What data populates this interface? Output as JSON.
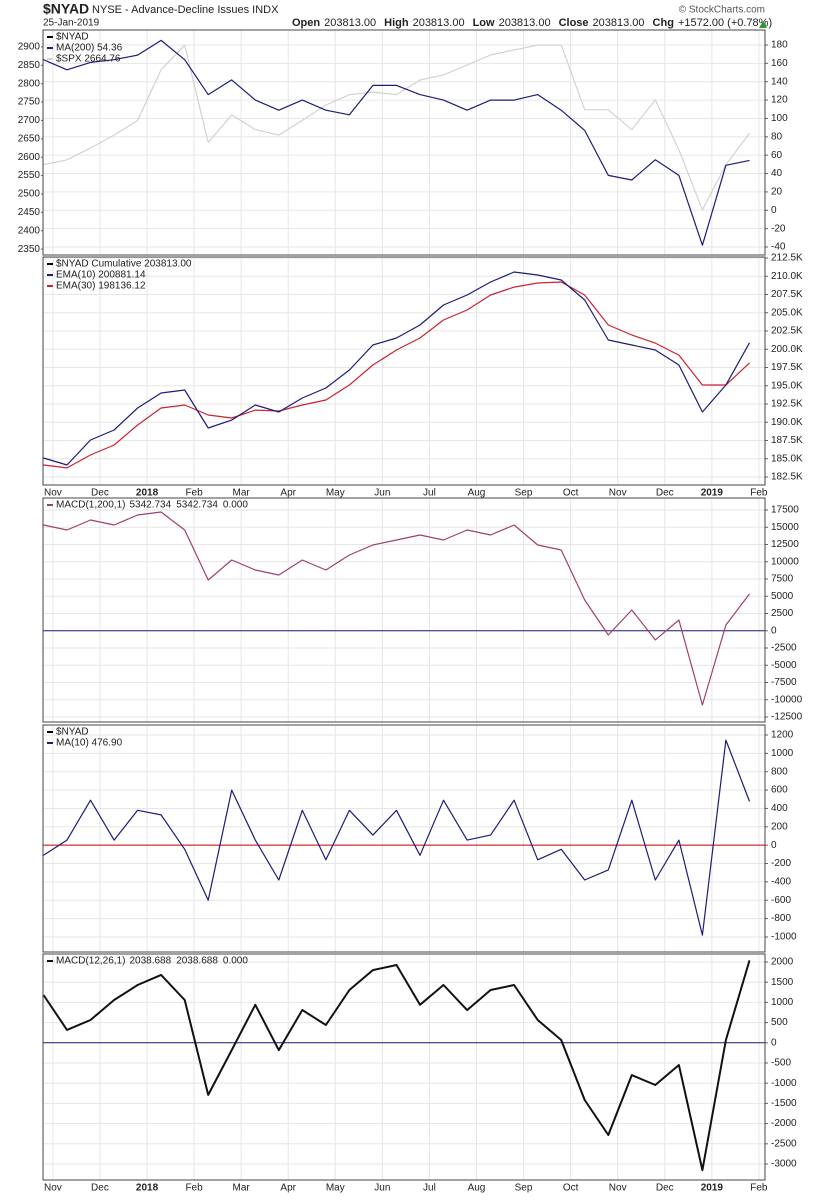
{
  "header": {
    "symbol": "$NYAD",
    "description": "NYSE - Advance-Decline Issues INDX",
    "date": "25-Jan-2019",
    "quote": [
      {
        "label": "Open",
        "value": "203813.00"
      },
      {
        "label": "High",
        "value": "203813.00"
      },
      {
        "label": "Low",
        "value": "203813.00"
      },
      {
        "label": "Close",
        "value": "203813.00"
      },
      {
        "label": "Chg",
        "value": "+1572.00 (+0.78%)"
      }
    ],
    "source": "© StockCharts.com"
  },
  "chart_data": [
    {
      "type": "line",
      "legend_title": "$NYAD",
      "grid": true,
      "x": [
        -0.2,
        0.3,
        0.8,
        1.3,
        1.8,
        2.3,
        2.8,
        3.3,
        3.8,
        4.3,
        4.8,
        5.3,
        5.8,
        6.3,
        6.8,
        7.3,
        7.8,
        8.3,
        8.8,
        9.3,
        9.8,
        10.3,
        10.8,
        11.3,
        11.8,
        12.3,
        12.8,
        13.3,
        13.8,
        14.3,
        14.8
      ],
      "xlim": [
        -0.21,
        15.13
      ],
      "ylim": [
        2334,
        2946
      ],
      "yticks": [
        2350,
        2400,
        2450,
        2500,
        2550,
        2600,
        2650,
        2700,
        2750,
        2800,
        2850,
        2900
      ],
      "yaxis_side": "left",
      "y2lim": [
        -48.7,
        196.3
      ],
      "y2ticks": [
        -40,
        -20,
        0,
        20,
        40,
        60,
        80,
        100,
        120,
        140,
        160,
        180
      ],
      "series": [
        {
          "name": "MA(200) 54.36",
          "color": "#1c1c7a",
          "axis": "y2",
          "values": [
            164,
            153,
            161,
            164,
            169,
            185,
            164,
            126,
            142,
            120,
            109,
            120,
            109,
            104,
            136,
            136,
            126,
            120,
            109,
            120,
            120,
            126,
            109,
            87,
            38,
            33,
            55,
            38,
            -38,
            49,
            54.36
          ]
        },
        {
          "name": "$SPX 2664.76",
          "color": "#d2d2d2",
          "legend_color": "#333333",
          "values": [
            2580,
            2593,
            2625,
            2660,
            2700,
            2838,
            2905,
            2640,
            2715,
            2675,
            2660,
            2700,
            2742,
            2770,
            2777,
            2770,
            2810,
            2824,
            2851,
            2878,
            2892,
            2905,
            2905,
            2729,
            2729,
            2675,
            2756,
            2620,
            2457,
            2580,
            2664.76
          ]
        }
      ]
    },
    {
      "type": "line",
      "legend_title": "$NYAD Cumulative 203813.00",
      "grid": true,
      "x": [
        -0.2,
        0.3,
        0.8,
        1.3,
        1.8,
        2.3,
        2.8,
        3.3,
        3.8,
        4.3,
        4.8,
        5.3,
        5.8,
        6.3,
        6.8,
        7.3,
        7.8,
        8.3,
        8.8,
        9.3,
        9.8,
        10.3,
        10.8,
        11.3,
        11.8,
        12.3,
        12.8,
        13.3,
        13.8,
        14.3,
        14.8
      ],
      "xlim": [
        -0.21,
        15.13
      ],
      "xticks": [
        {
          "value": 0,
          "label": "Nov"
        },
        {
          "value": 1,
          "label": "Dec"
        },
        {
          "value": 2,
          "label": "2018"
        },
        {
          "value": 3,
          "label": "Feb"
        },
        {
          "value": 4,
          "label": "Mar"
        },
        {
          "value": 5,
          "label": "Apr"
        },
        {
          "value": 6,
          "label": "May"
        },
        {
          "value": 7,
          "label": "Jun"
        },
        {
          "value": 8,
          "label": "Jul"
        },
        {
          "value": 9,
          "label": "Aug"
        },
        {
          "value": 10,
          "label": "Sep"
        },
        {
          "value": 11,
          "label": "Oct"
        },
        {
          "value": 12,
          "label": "Nov"
        },
        {
          "value": 13,
          "label": "Dec"
        },
        {
          "value": 14,
          "label": "2019"
        },
        {
          "value": 15,
          "label": "Feb"
        }
      ],
      "ylim": [
        181404,
        212637
      ],
      "yaxis_side": "right",
      "yticks": [
        {
          "value": 182500,
          "label": "182.5K"
        },
        {
          "value": 185000,
          "label": "185.0K"
        },
        {
          "value": 187500,
          "label": "187.5K"
        },
        {
          "value": 190000,
          "label": "190.0K"
        },
        {
          "value": 192500,
          "label": "192.5K"
        },
        {
          "value": 195000,
          "label": "195.0K"
        },
        {
          "value": 197500,
          "label": "197.5K"
        },
        {
          "value": 200000,
          "label": "200.0K"
        },
        {
          "value": 202500,
          "label": "202.5K"
        },
        {
          "value": 205000,
          "label": "205.0K"
        },
        {
          "value": 207500,
          "label": "207.5K"
        },
        {
          "value": 210000,
          "label": "210.0K"
        },
        {
          "value": 212500,
          "label": "212.5K"
        }
      ],
      "series": [
        {
          "name": "EMA(10) 200881.14",
          "color": "#1c1c7a",
          "values": [
            185100,
            184150,
            187570,
            188940,
            191950,
            194000,
            194420,
            189210,
            190300,
            192360,
            191400,
            193320,
            194690,
            197160,
            200580,
            201540,
            203320,
            206060,
            207430,
            209210,
            210580,
            210170,
            209490,
            206750,
            201270,
            200580,
            199900,
            197840,
            191400,
            195100,
            200881
          ]
        },
        {
          "name": "EMA(30) 198136.12",
          "color": "#cc2233",
          "values": [
            184150,
            183740,
            185520,
            186880,
            189620,
            191950,
            192360,
            190990,
            190580,
            191670,
            191540,
            192360,
            193050,
            195100,
            197840,
            199900,
            201540,
            204010,
            205380,
            207430,
            208520,
            209070,
            209210,
            207430,
            203320,
            201950,
            200840,
            199200,
            195100,
            195100,
            198136
          ]
        }
      ]
    },
    {
      "type": "line",
      "grid": true,
      "zero_line_color": "#1c1c7a",
      "x": [
        -0.2,
        0.3,
        0.8,
        1.3,
        1.8,
        2.3,
        2.8,
        3.3,
        3.8,
        4.3,
        4.8,
        5.3,
        5.8,
        6.3,
        6.8,
        7.3,
        7.8,
        8.3,
        8.8,
        9.3,
        9.8,
        10.3,
        10.8,
        11.3,
        11.8,
        12.3,
        12.8,
        13.3,
        13.8,
        14.3,
        14.8
      ],
      "xlim": [
        -0.21,
        15.13
      ],
      "ylim": [
        -13225,
        19239
      ],
      "yaxis_side": "right",
      "yticks": [
        -12500,
        -10000,
        -7500,
        -5000,
        -2500,
        0,
        2500,
        5000,
        7500,
        10000,
        12500,
        15000,
        17500
      ],
      "legend_values": [
        "5342.734",
        "5342.734",
        "0.000"
      ],
      "legend_value_colors": [
        "#a04070",
        "#1c1c7a",
        "#cc2233"
      ],
      "series": [
        {
          "name": "MACD(1,200,1)",
          "color": "#a04070",
          "legend_color": "#333333",
          "values": [
            15330,
            14600,
            16050,
            15330,
            16780,
            17210,
            14600,
            7360,
            10250,
            8800,
            8080,
            10250,
            8800,
            10980,
            12430,
            13150,
            13880,
            13150,
            14600,
            13880,
            15330,
            12430,
            11700,
            4460,
            -610,
            3010,
            -1330,
            1560,
            -10760,
            830,
            5342.734
          ]
        }
      ]
    },
    {
      "type": "line",
      "legend_title": "$NYAD",
      "grid": true,
      "zero_line_color": "#cc0000",
      "x": [
        -0.2,
        0.3,
        0.8,
        1.3,
        1.8,
        2.3,
        2.8,
        3.3,
        3.8,
        4.3,
        4.8,
        5.3,
        5.8,
        6.3,
        6.8,
        7.3,
        7.8,
        8.3,
        8.8,
        9.3,
        9.8,
        10.3,
        10.8,
        11.3,
        11.8,
        12.3,
        12.8,
        13.3,
        13.8,
        14.3,
        14.8
      ],
      "xlim": [
        -0.21,
        15.13
      ],
      "ylim": [
        -1164,
        1309
      ],
      "yaxis_side": "right",
      "yticks": [
        -1000,
        -800,
        -600,
        -400,
        -200,
        0,
        200,
        400,
        600,
        800,
        1000,
        1200
      ],
      "series": [
        {
          "name": "MA(10) 476.90",
          "color": "#1c1c7a",
          "values": [
            -110,
            55,
            490,
            55,
            380,
            330,
            -45,
            -600,
            600,
            55,
            -380,
            380,
            -160,
            380,
            110,
            380,
            -110,
            490,
            55,
            110,
            490,
            -160,
            -45,
            -380,
            -270,
            490,
            -380,
            55,
            -980,
            1145,
            476.9
          ]
        }
      ]
    },
    {
      "type": "line",
      "grid": true,
      "zero_line_color": "#1c1c7a",
      "x": [
        -0.2,
        0.3,
        0.8,
        1.3,
        1.8,
        2.3,
        2.8,
        3.3,
        3.8,
        4.3,
        4.8,
        5.3,
        5.8,
        6.3,
        6.8,
        7.3,
        7.8,
        8.3,
        8.8,
        9.3,
        9.8,
        10.3,
        10.8,
        11.3,
        11.8,
        12.3,
        12.8,
        13.3,
        13.8,
        14.3,
        14.8
      ],
      "xlim": [
        -0.21,
        15.13
      ],
      "xticks": [
        {
          "value": 0,
          "label": "Nov"
        },
        {
          "value": 1,
          "label": "Dec"
        },
        {
          "value": 2,
          "label": "2018"
        },
        {
          "value": 3,
          "label": "Feb"
        },
        {
          "value": 4,
          "label": "Mar"
        },
        {
          "value": 5,
          "label": "Apr"
        },
        {
          "value": 6,
          "label": "May"
        },
        {
          "value": 7,
          "label": "Jun"
        },
        {
          "value": 8,
          "label": "Jul"
        },
        {
          "value": 9,
          "label": "Aug"
        },
        {
          "value": 10,
          "label": "Sep"
        },
        {
          "value": 11,
          "label": "Oct"
        },
        {
          "value": 12,
          "label": "Nov"
        },
        {
          "value": 13,
          "label": "Dec"
        },
        {
          "value": 14,
          "label": "2019"
        },
        {
          "value": 15,
          "label": "Feb"
        }
      ],
      "ylim": [
        -3396,
        2198
      ],
      "yaxis_side": "right",
      "yticks": [
        -3000,
        -2500,
        -2000,
        -1500,
        -1000,
        -500,
        0,
        500,
        1000,
        1500,
        2000
      ],
      "legend_values": [
        "2038.688",
        "2038.688",
        "0.000"
      ],
      "legend_value_colors": [
        "#111111",
        "#cc2233",
        "#3399cc"
      ],
      "series": [
        {
          "name": "MACD(12,26,1)",
          "color": "#111111",
          "width": 2,
          "values": [
            1183,
            320,
            564,
            1060,
            1430,
            1680,
            1060,
            -1290,
            -180,
            940,
            -180,
            812,
            440,
            1307,
            1800,
            1926,
            940,
            1430,
            810,
            1307,
            1430,
            565,
            70,
            -1416,
            -2282,
            -800,
            -1045,
            -550,
            -3150,
            70,
            2038.688
          ]
        }
      ]
    }
  ]
}
